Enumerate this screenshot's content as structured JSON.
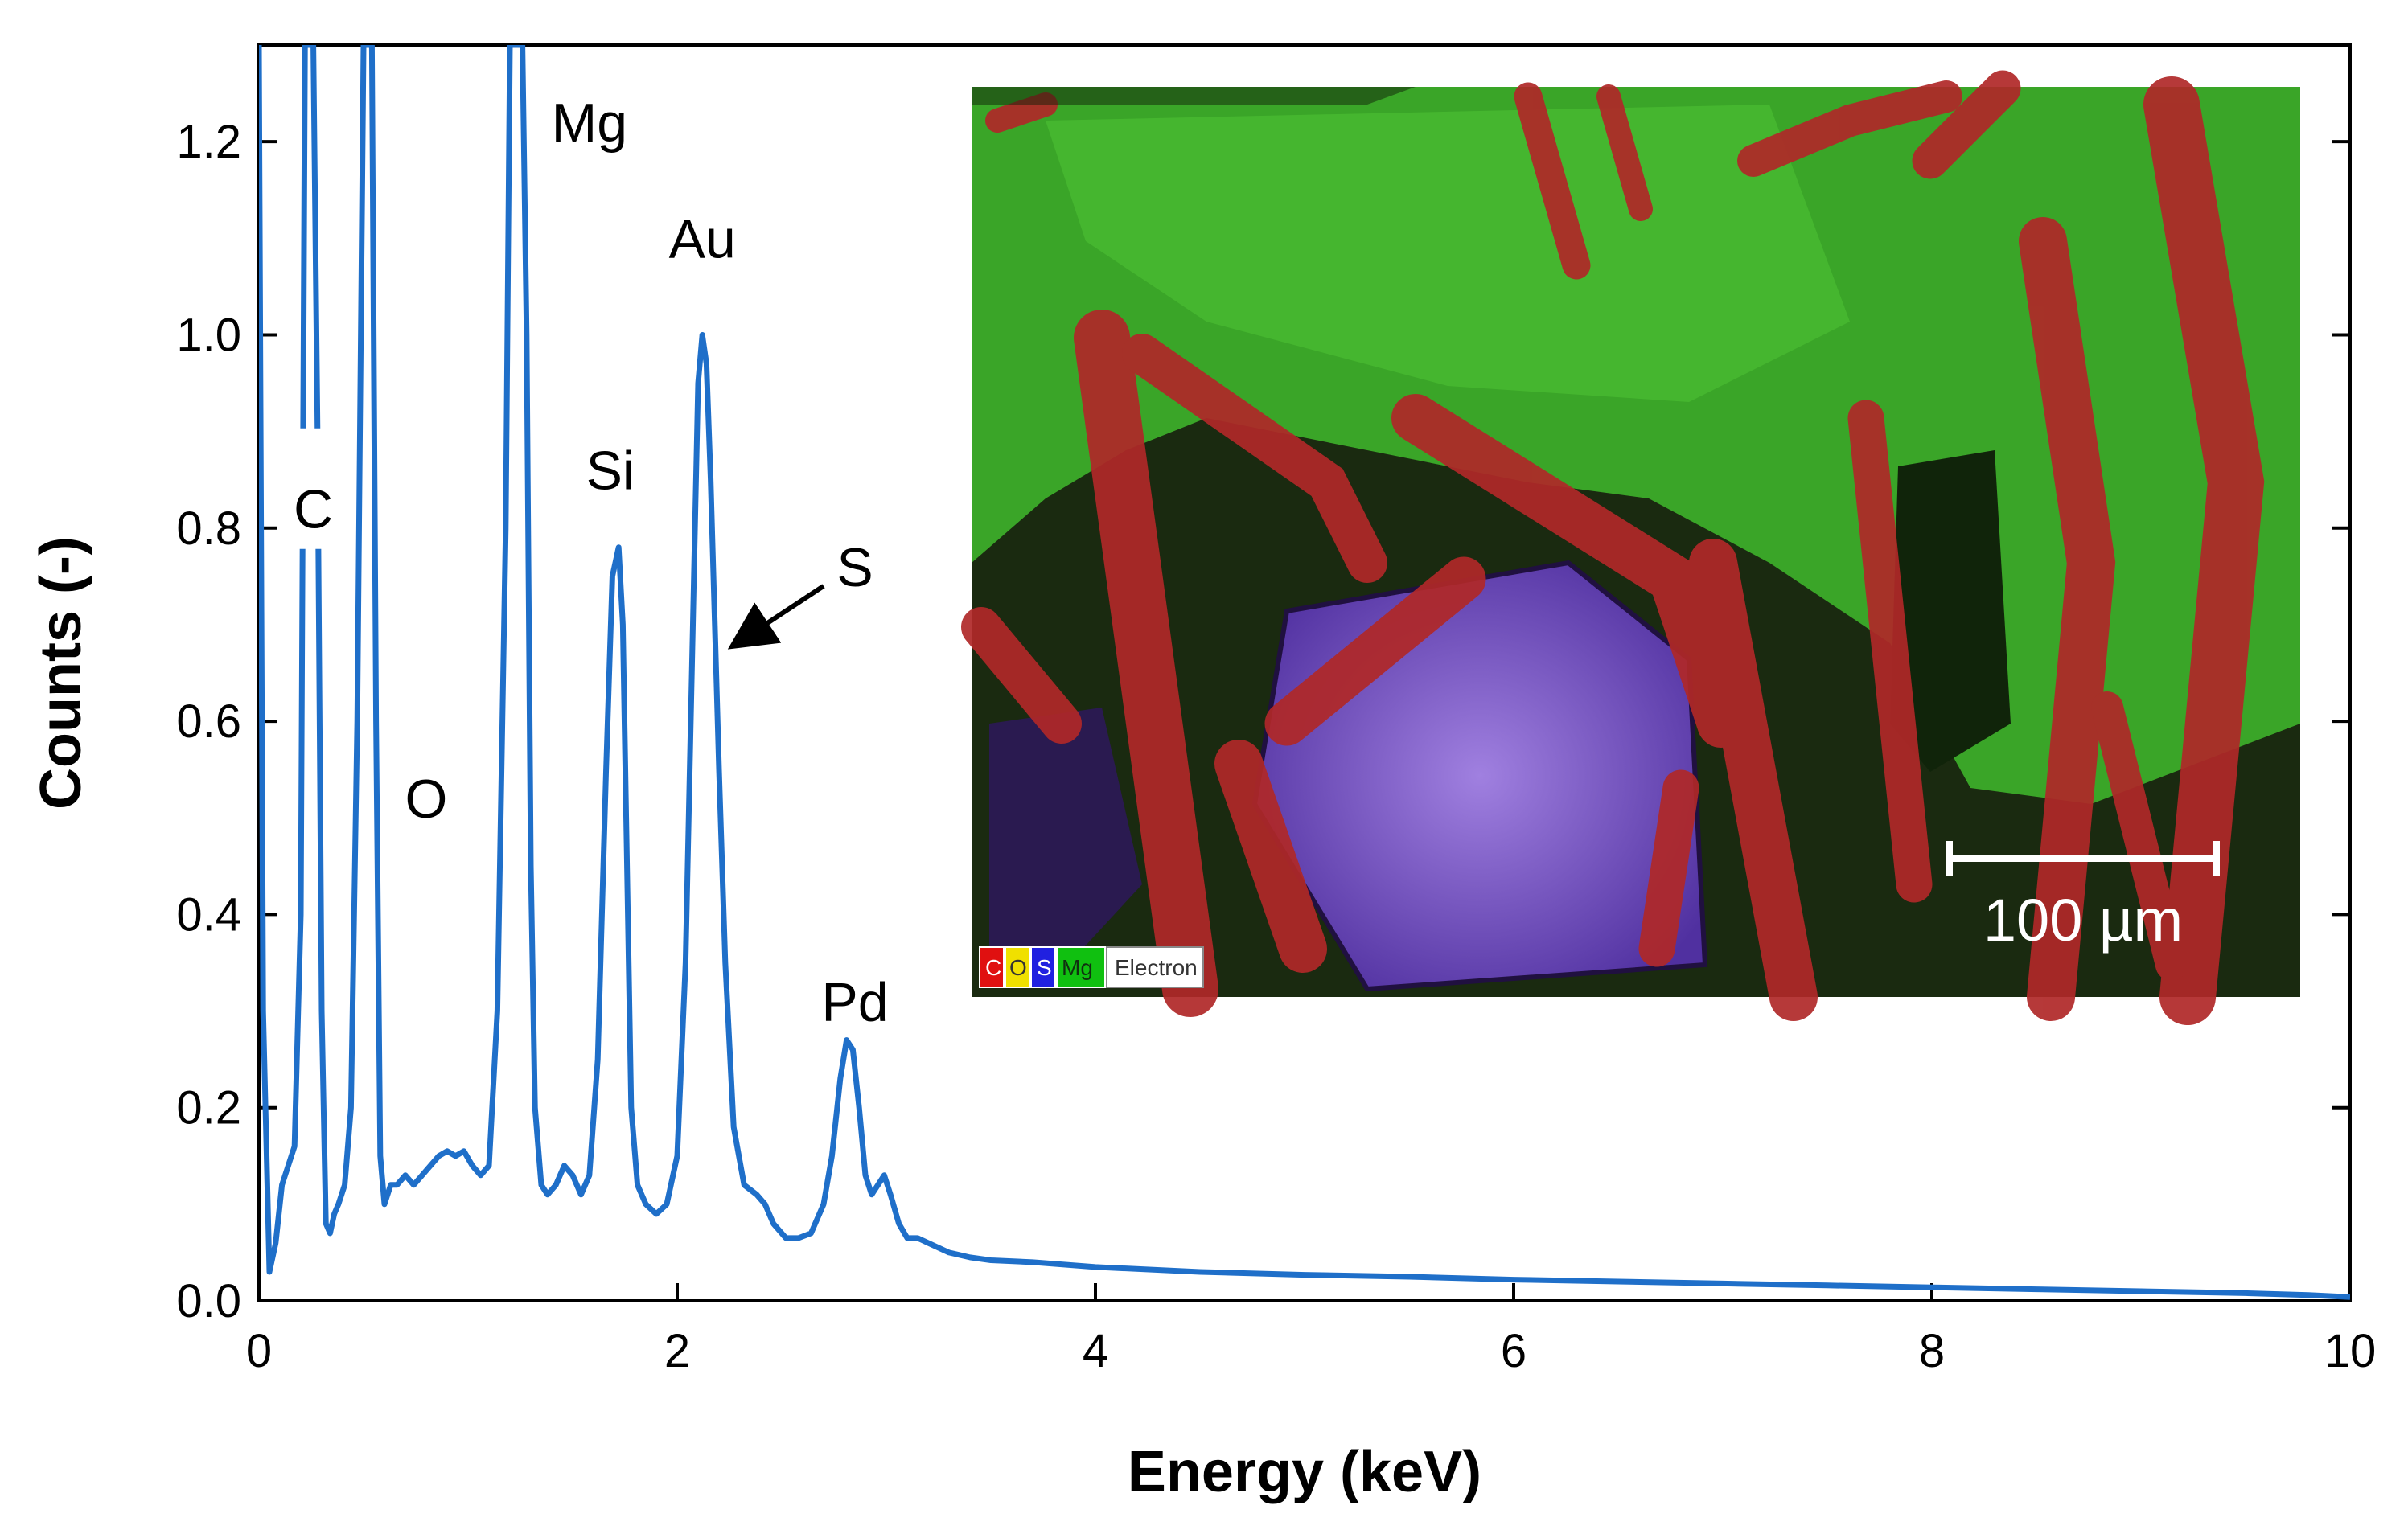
{
  "chart_data": {
    "type": "line",
    "xlabel": "Energy (keV)",
    "ylabel": "Counts (-)",
    "xlim": [
      0,
      10
    ],
    "ylim": [
      0,
      1.3
    ],
    "xticks": [
      0,
      2,
      4,
      6,
      8,
      10
    ],
    "xtick_labels": [
      "0",
      "2",
      "4",
      "6",
      "8",
      "10"
    ],
    "yticks": [
      0.0,
      0.2,
      0.4,
      0.6,
      0.8,
      1.0,
      1.2
    ],
    "ytick_labels": [
      "0.0",
      "0.2",
      "0.4",
      "0.6",
      "0.8",
      "1.0",
      "1.2"
    ],
    "series": [
      {
        "name": "EDS spectrum",
        "color": "#1f6fc9",
        "x": [
          0.0,
          0.02,
          0.05,
          0.08,
          0.11,
          0.14,
          0.17,
          0.2,
          0.22,
          0.24,
          0.26,
          0.28,
          0.3,
          0.32,
          0.34,
          0.36,
          0.38,
          0.41,
          0.44,
          0.47,
          0.5,
          0.52,
          0.54,
          0.56,
          0.58,
          0.6,
          0.63,
          0.66,
          0.7,
          0.74,
          0.78,
          0.82,
          0.86,
          0.9,
          0.94,
          0.98,
          1.02,
          1.06,
          1.1,
          1.14,
          1.18,
          1.2,
          1.22,
          1.24,
          1.26,
          1.28,
          1.3,
          1.32,
          1.35,
          1.38,
          1.42,
          1.46,
          1.5,
          1.54,
          1.58,
          1.62,
          1.66,
          1.69,
          1.72,
          1.74,
          1.76,
          1.78,
          1.81,
          1.85,
          1.9,
          1.95,
          2.0,
          2.04,
          2.08,
          2.1,
          2.12,
          2.14,
          2.16,
          2.18,
          2.2,
          2.23,
          2.27,
          2.32,
          2.38,
          2.42,
          2.46,
          2.52,
          2.58,
          2.64,
          2.7,
          2.74,
          2.78,
          2.81,
          2.84,
          2.87,
          2.9,
          2.93,
          2.96,
          2.99,
          3.02,
          3.06,
          3.1,
          3.15,
          3.2,
          3.3,
          3.4,
          3.5,
          3.7,
          4.0,
          4.5,
          5.0,
          5.5,
          6.0,
          6.5,
          7.0,
          7.5,
          8.0,
          8.5,
          9.0,
          9.5,
          9.8,
          10.0
        ],
        "y": [
          1.3,
          0.3,
          0.03,
          0.06,
          0.12,
          0.14,
          0.16,
          0.4,
          1.3,
          1.3,
          1.3,
          0.9,
          0.3,
          0.08,
          0.07,
          0.09,
          0.1,
          0.12,
          0.2,
          0.6,
          1.3,
          1.3,
          1.3,
          0.6,
          0.15,
          0.1,
          0.12,
          0.12,
          0.13,
          0.12,
          0.13,
          0.14,
          0.15,
          0.155,
          0.15,
          0.155,
          0.14,
          0.13,
          0.14,
          0.3,
          0.8,
          1.3,
          1.3,
          1.3,
          1.3,
          1.0,
          0.45,
          0.2,
          0.12,
          0.11,
          0.12,
          0.14,
          0.13,
          0.11,
          0.13,
          0.25,
          0.55,
          0.75,
          0.78,
          0.7,
          0.45,
          0.2,
          0.12,
          0.1,
          0.09,
          0.1,
          0.15,
          0.35,
          0.75,
          0.95,
          1.0,
          0.97,
          0.85,
          0.7,
          0.55,
          0.35,
          0.18,
          0.12,
          0.11,
          0.1,
          0.08,
          0.065,
          0.065,
          0.07,
          0.1,
          0.15,
          0.23,
          0.27,
          0.26,
          0.2,
          0.13,
          0.11,
          0.12,
          0.13,
          0.11,
          0.08,
          0.065,
          0.065,
          0.06,
          0.05,
          0.045,
          0.042,
          0.04,
          0.035,
          0.03,
          0.027,
          0.025,
          0.022,
          0.02,
          0.018,
          0.016,
          0.014,
          0.012,
          0.01,
          0.008,
          0.006,
          0.004
        ]
      }
    ],
    "annotations": [
      {
        "text": "C",
        "x": 0.26,
        "y": 0.82
      },
      {
        "text": "O",
        "x": 0.8,
        "y": 0.52
      },
      {
        "text": "Mg",
        "x": 1.58,
        "y": 1.22
      },
      {
        "text": "Si",
        "x": 1.68,
        "y": 0.86
      },
      {
        "text": "Au",
        "x": 2.12,
        "y": 1.1
      },
      {
        "text": "S",
        "x": 2.85,
        "y": 0.76
      },
      {
        "text": "Pd",
        "x": 2.85,
        "y": 0.31
      }
    ],
    "arrow": {
      "from": [
        2.7,
        0.74
      ],
      "to": [
        2.28,
        0.68
      ]
    }
  },
  "inset": {
    "description_legend": [
      "C",
      "O",
      "S",
      "Mg",
      "Electron"
    ],
    "legend_colors": [
      "#e01010",
      "#f0e000",
      "#2020e0",
      "#10c010",
      "#ffffff"
    ],
    "scale_bar_label": "100 µm"
  }
}
